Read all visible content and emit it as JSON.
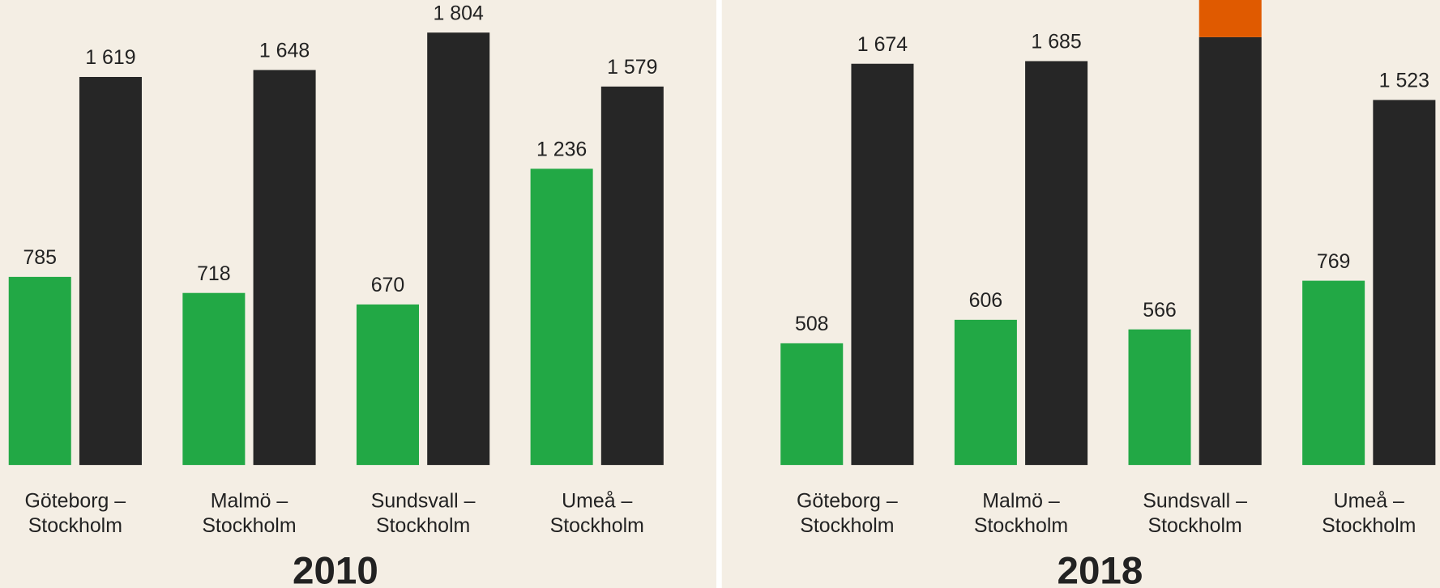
{
  "chart_data": [
    {
      "type": "bar",
      "title": "2010",
      "categories": [
        "Göteborg –\nStockholm",
        "Malmö –\nStockholm",
        "Sundsvall –\nStockholm",
        "Umeå –\nStockholm"
      ],
      "series": [
        {
          "color": "#22a845",
          "values": [
            785,
            718,
            670,
            1236
          ],
          "value_labels": [
            "785",
            "718",
            "670",
            "1 236"
          ]
        },
        {
          "color": "#262626",
          "values": [
            1619,
            1648,
            1804,
            1579
          ],
          "value_labels": [
            "1 619",
            "1 648",
            "1 804",
            "1 579"
          ]
        }
      ],
      "ylim": [
        0,
        1940
      ]
    },
    {
      "type": "bar",
      "title": "2018",
      "categories": [
        "Göteborg –\nStockholm",
        "Malmö –\nStockholm",
        "Sundsvall –\nStockholm",
        "Umeå –\nStockholm"
      ],
      "series": [
        {
          "color": "#22a845",
          "values": [
            508,
            606,
            566,
            769
          ],
          "value_labels": [
            "508",
            "606",
            "566",
            "769"
          ]
        },
        {
          "color": "#262626",
          "values": [
            1674,
            1685,
            1785,
            1523
          ],
          "value_labels": [
            "1 674",
            "1 685",
            null,
            "1 523"
          ]
        },
        {
          "color": "#e05a00",
          "stack": true,
          "values": [
            null,
            null,
            160,
            null
          ]
        }
      ],
      "ylim": [
        0,
        1940
      ]
    }
  ]
}
